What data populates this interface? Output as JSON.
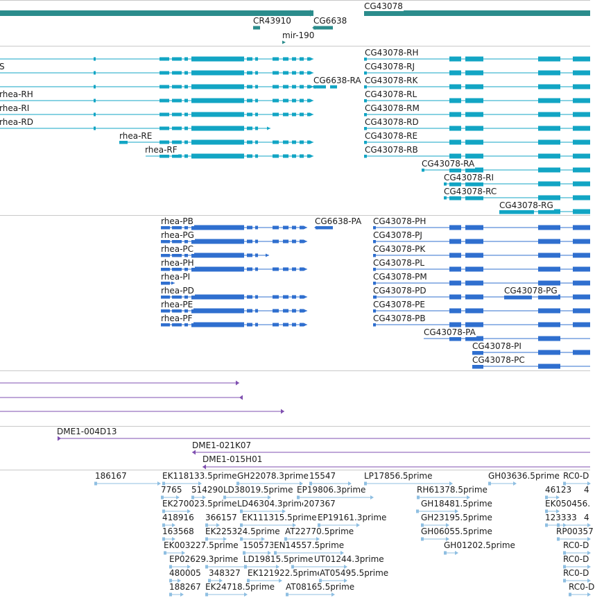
{
  "colors": {
    "gene": "#2b8c8c",
    "transcript": "#12a5c4",
    "protein": "#2f6fcf",
    "clone": "#7f4fb0",
    "est": "#8fbfe2",
    "separator": "#c8c8c8"
  },
  "tracks": {
    "genes": {
      "labels": [
        "CR43910",
        "CG6638",
        "mir-190",
        "CG43078"
      ]
    },
    "transcripts": {
      "labels": [
        "S",
        "rhea-RH",
        "rhea-RI",
        "rhea-RD",
        "rhea-RE",
        "rhea-RF",
        "CG6638-RA",
        "CG43078-RH",
        "CG43078-RJ",
        "CG43078-RK",
        "CG43078-RL",
        "CG43078-RM",
        "CG43078-RD",
        "CG43078-RE",
        "CG43078-RB",
        "CG43078-RA",
        "CG43078-RI",
        "CG43078-RC",
        "CG43078-RG"
      ]
    },
    "proteins": {
      "labels": [
        "rhea-PB",
        "rhea-PG",
        "rhea-PC",
        "rhea-PH",
        "rhea-PI",
        "rhea-PD",
        "rhea-PE",
        "rhea-PF",
        "CG6638-PA",
        "CG43078-PH",
        "CG43078-PJ",
        "CG43078-PK",
        "CG43078-PL",
        "CG43078-PM",
        "CG43078-PD",
        "CG43078-PG",
        "CG43078-PE",
        "CG43078-PB",
        "CG43078-PA",
        "CG43078-PI",
        "CG43078-PC"
      ]
    },
    "clones": {
      "labels": [
        "DME1-004D13",
        "DME1-021K07",
        "DME1-015H01"
      ]
    },
    "ests": {
      "labels": [
        "186167",
        "EK118133.5prime",
        "GH22078.3prime",
        "15547",
        "LP17856.5prime",
        "GH03636.5prime",
        "RC0-D",
        "7765",
        "514290",
        "EP19806.3prime",
        "RH61378.5prime",
        "46123",
        "4",
        "EK270023.5prime",
        "LD46304.3prime",
        "207367",
        "GH18481.5prime",
        "EK050456.",
        "418916",
        "366157",
        "EK111315.5prime",
        "EP19161.3prime",
        "GH23195.5prime",
        "123333",
        "4",
        "163568",
        "EK225324.5prime",
        "AT22770.5prime",
        "GH06055.5prime",
        "RP00357",
        "EK003227.5prime",
        "150573",
        "EN14557.5prime",
        "GH01202.5prime",
        "RC0-D",
        "EP02629.3prime",
        "LD19815.5prime",
        "UT01244.3prime",
        "RC0-D",
        "480005",
        "348327",
        "EK121922.5prime",
        "AT05495.5prime",
        "RC0-D",
        "188267",
        "EK24718.5prime",
        "AT08165.5prime",
        "RC0-D",
        "LD38019.5prime"
      ]
    }
  }
}
